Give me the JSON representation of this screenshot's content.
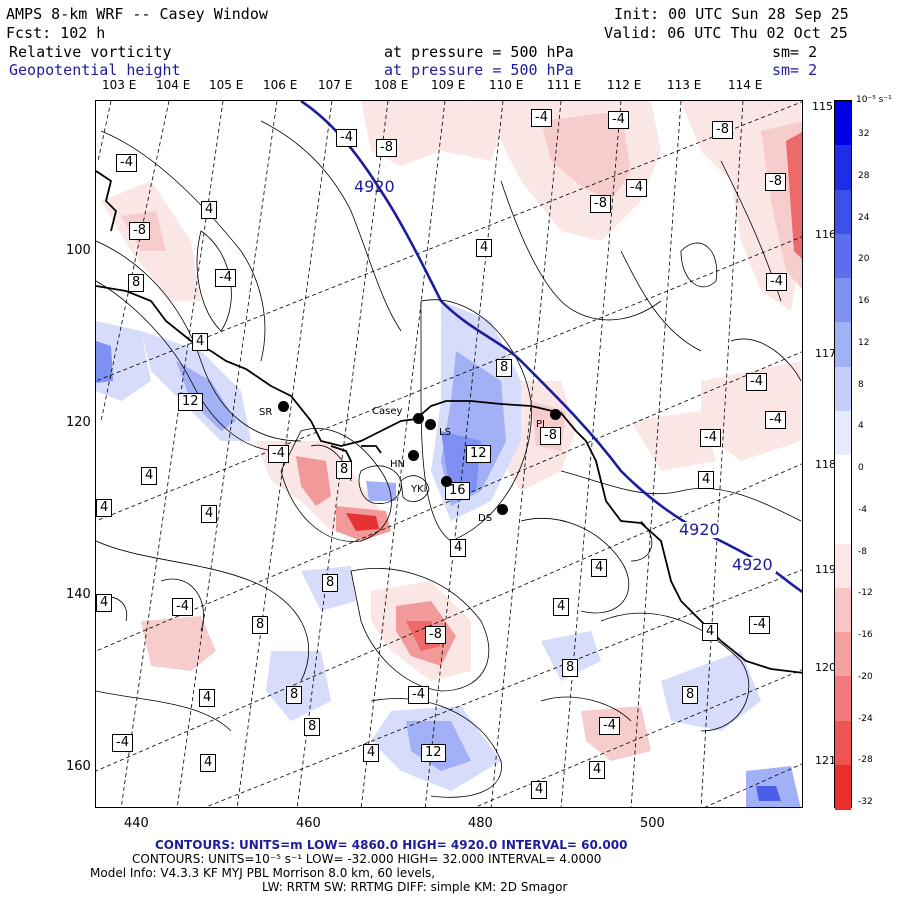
{
  "header": {
    "title": "AMPS 8-km WRF -- Casey Window",
    "init": "Init: 00 UTC Sun 28 Sep 25",
    "fcst": "Fcst:  102 h",
    "valid": "Valid: 06 UTC Thu 02 Oct 25",
    "field1": "Relative vorticity",
    "field1_pressure": "at pressure =  500 hPa",
    "field1_sm": "sm= 2",
    "field2": "Geopotential height",
    "field2_pressure": "at pressure =  500 hPa",
    "field2_sm": "sm= 2"
  },
  "map": {
    "top_lon_labels": [
      "103 E",
      "104 E",
      "105 E",
      "106 E",
      "107 E",
      "108 E",
      "109 E",
      "110 E",
      "111 E",
      "112 E",
      "113 E",
      "114 E"
    ],
    "right_lat_labels": [
      "115 E",
      "116 E",
      "117 E",
      "118 E",
      "119 E",
      "120 E",
      "121 E"
    ],
    "y_axis_labels": [
      "100",
      "120",
      "140",
      "160"
    ],
    "x_axis_labels": [
      "440",
      "460",
      "480",
      "500"
    ],
    "height_contour_label": "4920",
    "vorticity_labels": [
      "-4",
      "-8",
      "-4",
      "-8",
      "4",
      "-4",
      "-8",
      "-4",
      "-8",
      "4",
      "-4",
      "8",
      "4",
      "-4",
      "12",
      "8",
      "-4",
      "-8",
      "12",
      "16",
      "4",
      "4",
      "4",
      "8",
      "4",
      "-4",
      "8",
      "8",
      "-8",
      "4",
      "8",
      "4",
      "-4",
      "8",
      "8",
      "12",
      "4",
      "4",
      "-4",
      "4",
      "-4",
      "8",
      "4",
      "-4",
      "-4",
      "-4",
      "4",
      "4",
      "-4",
      "-8",
      "-4",
      "4",
      "4"
    ],
    "stations": [
      {
        "code": "SR"
      },
      {
        "code": "Casey"
      },
      {
        "code": "LS"
      },
      {
        "code": "HN"
      },
      {
        "code": "YKi"
      },
      {
        "code": "DS"
      },
      {
        "code": "PI"
      }
    ]
  },
  "colorbar": {
    "unit": "10⁻⁵ s⁻¹",
    "levels": [
      "32",
      "28",
      "24",
      "20",
      "16",
      "12",
      "8",
      "4",
      "0",
      "-4",
      "-8",
      "-12",
      "-16",
      "-20",
      "-24",
      "-28",
      "-32"
    ],
    "colors": [
      "#0000e6",
      "#1e2ee8",
      "#3c50ea",
      "#5a6eee",
      "#7e90f2",
      "#a2b0f6",
      "#c6cefa",
      "#e6eafd",
      "#ffffff",
      "#ffffff",
      "#fde6e6",
      "#f9c4c4",
      "#f5a0a0",
      "#f27a7a",
      "#ee5454",
      "#ea2e2e",
      "#e60000"
    ]
  },
  "footer": {
    "line1": "CONTOURS:  UNITS=m  LOW=  4860.0          HIGH=  4920.0        INTERVAL=   60.000",
    "line2": "CONTOURS:  UNITS=10⁻⁵ s⁻¹   LOW=  -32.000        HIGH=  32.000      INTERVAL=   4.0000",
    "line3": "Model Info: V4.3.3    KF         MYJ PBL  Morrison              8.0 km,   60 levels,",
    "line4": "LW: RRTM  SW: RRTMG     DIFF: simple  KM: 2D Smagor"
  }
}
